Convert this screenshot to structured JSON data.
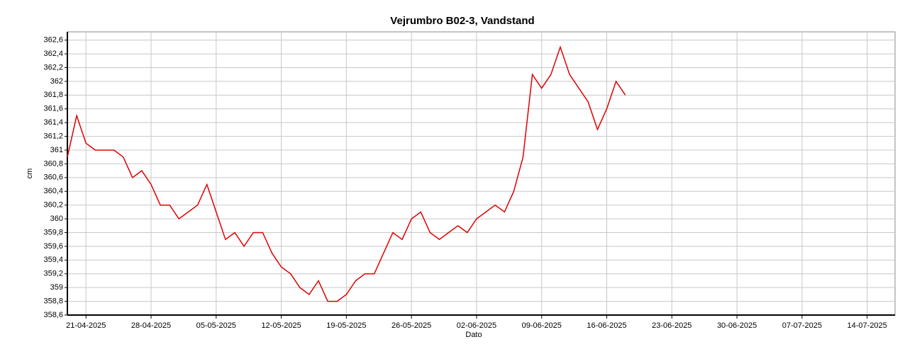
{
  "chart_data": {
    "type": "line",
    "title": "Vejrumbro B02-3, Vandstand",
    "x_label": "Dato",
    "y_label": "cm",
    "x": [
      "19-04-2025",
      "20-04-2025",
      "21-04-2025",
      "22-04-2025",
      "23-04-2025",
      "24-04-2025",
      "25-04-2025",
      "26-04-2025",
      "27-04-2025",
      "28-04-2025",
      "29-04-2025",
      "30-04-2025",
      "01-05-2025",
      "02-05-2025",
      "03-05-2025",
      "04-05-2025",
      "05-05-2025",
      "06-05-2025",
      "07-05-2025",
      "08-05-2025",
      "09-05-2025",
      "10-05-2025",
      "11-05-2025",
      "12-05-2025",
      "13-05-2025",
      "14-05-2025",
      "15-05-2025",
      "16-05-2025",
      "17-05-2025",
      "18-05-2025",
      "19-05-2025",
      "20-05-2025",
      "21-05-2025",
      "22-05-2025",
      "23-05-2025",
      "24-05-2025",
      "25-05-2025",
      "26-05-2025",
      "27-05-2025",
      "28-05-2025",
      "29-05-2025",
      "30-05-2025",
      "31-05-2025",
      "01-06-2025",
      "02-06-2025",
      "03-06-2025",
      "04-06-2025",
      "05-06-2025",
      "06-06-2025",
      "07-06-2025",
      "08-06-2025",
      "09-06-2025",
      "10-06-2025",
      "11-06-2025",
      "12-06-2025",
      "13-06-2025",
      "14-06-2025",
      "15-06-2025",
      "16-06-2025",
      "17-06-2025",
      "18-06-2025"
    ],
    "series": [
      {
        "name": "Vandstand",
        "color": "#e00000",
        "values": [
          360.9,
          361.5,
          361.1,
          361.0,
          361.0,
          361.0,
          360.9,
          360.6,
          360.7,
          360.5,
          360.2,
          360.2,
          360.0,
          360.1,
          360.2,
          360.5,
          360.1,
          359.7,
          359.8,
          359.6,
          359.8,
          359.8,
          359.5,
          359.3,
          359.2,
          359.0,
          358.9,
          359.1,
          358.8,
          358.8,
          358.9,
          359.1,
          359.2,
          359.2,
          359.5,
          359.8,
          359.7,
          360.0,
          360.1,
          359.8,
          359.7,
          359.8,
          359.9,
          359.8,
          360.0,
          360.1,
          360.2,
          360.1,
          360.4,
          360.9,
          362.1,
          361.9,
          362.1,
          362.5,
          362.1,
          361.9,
          361.7,
          361.3,
          361.6,
          362.0,
          361.8
        ]
      }
    ],
    "xlim": [
      "19-04-2025",
      "17-07-2025"
    ],
    "xticks": [
      "21-04-2025",
      "28-04-2025",
      "05-05-2025",
      "12-05-2025",
      "19-05-2025",
      "26-05-2025",
      "02-06-2025",
      "09-06-2025",
      "16-06-2025",
      "23-06-2025",
      "30-06-2025",
      "07-07-2025",
      "14-07-2025"
    ],
    "ylim": [
      358.6,
      362.72
    ],
    "yticks": [
      {
        "value": 358.6,
        "label": "358,6"
      },
      {
        "value": 358.8,
        "label": "358,8"
      },
      359,
      {
        "value": 359.2,
        "label": "359,2"
      },
      {
        "value": 359.4,
        "label": "359,4"
      },
      {
        "value": 359.6,
        "label": "359,6"
      },
      {
        "value": 359.8,
        "label": "359,8"
      },
      360,
      {
        "value": 360.2,
        "label": "360,2"
      },
      {
        "value": 360.4,
        "label": "360,4"
      },
      {
        "value": 360.6,
        "label": "360,6"
      },
      {
        "value": 360.8,
        "label": "360,8"
      },
      361,
      {
        "value": 361.2,
        "label": "361,2"
      },
      {
        "value": 361.4,
        "label": "361,4"
      },
      {
        "value": 361.6,
        "label": "361,6"
      },
      {
        "value": 361.8,
        "label": "361,8"
      },
      362,
      {
        "value": 362.2,
        "label": "362,2"
      },
      {
        "value": 362.4,
        "label": "362,4"
      },
      {
        "value": 362.6,
        "label": "362,6"
      }
    ],
    "grid": true
  }
}
